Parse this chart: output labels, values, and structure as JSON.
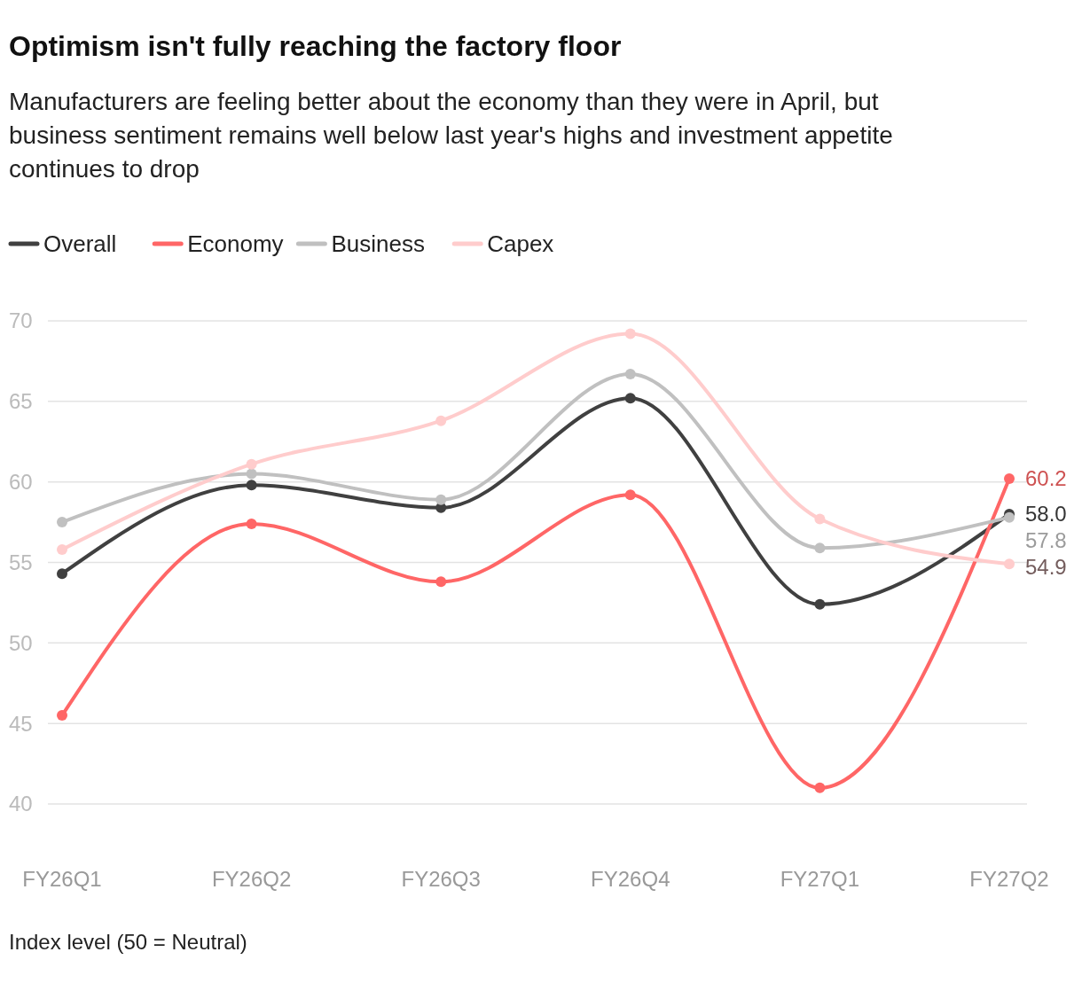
{
  "chart_data": {
    "type": "line",
    "title": "Optimism isn't fully reaching the factory floor",
    "subtitle": "Manufacturers are feeling better about the economy than they were in April, but business sentiment remains well below last year's highs and investment appetite continues to drop",
    "categories": [
      "FY26Q1",
      "FY26Q2",
      "FY26Q3",
      "FY26Q4",
      "FY27Q1",
      "FY27Q2"
    ],
    "series": [
      {
        "name": "Overall",
        "color": "#404040",
        "values": [
          54.3,
          59.8,
          58.4,
          65.2,
          52.4,
          58.0
        ],
        "value_labels": [
          null,
          null,
          null,
          null,
          null,
          "58.0"
        ]
      },
      {
        "name": "Economy",
        "color": "#ff6666",
        "values": [
          45.5,
          57.4,
          53.8,
          59.2,
          41.0,
          60.2
        ],
        "value_labels": [
          null,
          null,
          null,
          null,
          null,
          "60.2"
        ]
      },
      {
        "name": "Business",
        "color": "#c0c0c0",
        "values": [
          57.5,
          60.5,
          58.9,
          66.7,
          55.9,
          57.8
        ],
        "value_labels": [
          null,
          null,
          null,
          null,
          null,
          "57.8"
        ]
      },
      {
        "name": "Capex",
        "color": "#ffcccc",
        "values": [
          55.8,
          61.1,
          63.8,
          69.2,
          57.7,
          54.9
        ],
        "value_labels": [
          null,
          null,
          null,
          null,
          null,
          "54.9"
        ]
      }
    ],
    "ylim": [
      40,
      70
    ],
    "yticks": [
      40,
      45,
      50,
      55,
      60,
      65,
      70
    ],
    "grid": "y",
    "legend": "top left",
    "marker": "circle",
    "line_style": "solid",
    "annotations": [
      "Index level (50 = Neutral)"
    ]
  }
}
